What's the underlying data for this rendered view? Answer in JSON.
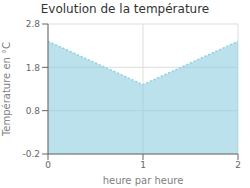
{
  "chart_data": {
    "type": "area",
    "title": "Evolution de la température",
    "xlabel": "heure par heure",
    "ylabel": "Température en °C",
    "x": [
      0,
      1,
      2
    ],
    "values": [
      2.4,
      1.4,
      2.4
    ],
    "color": "#8ecfdf",
    "line_style": "dotted",
    "xlim": [
      0,
      2
    ],
    "ylim": [
      -0.2,
      2.8
    ],
    "xticks": [
      0,
      1,
      2
    ],
    "yticks": [
      -0.2,
      0.8,
      1.8,
      2.8
    ],
    "grid": true
  }
}
